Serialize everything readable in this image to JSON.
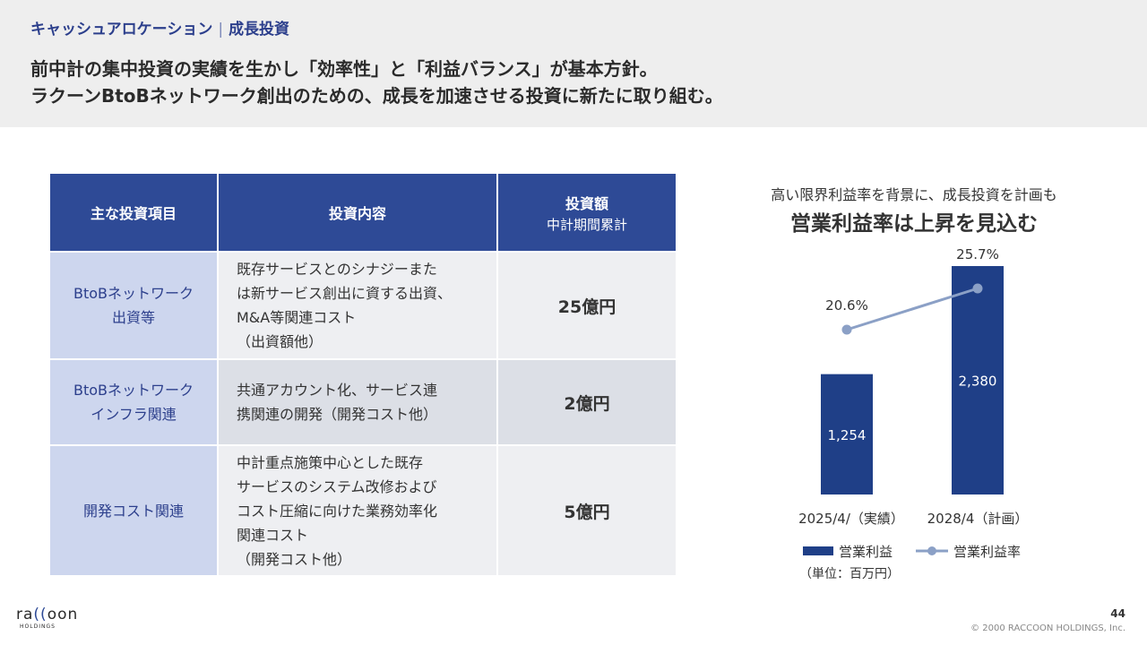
{
  "header": {
    "section": "キャッシュアロケーション",
    "separator": "|",
    "subsection": "成長投資",
    "headline_line1": "前中計の集中投資の実績を生かし「効率性」と「利益バランス」が基本方針。",
    "headline_line2": "ラクーンBtoBネットワーク創出のための、成長を加速させる投資に新たに取り組む。"
  },
  "table": {
    "col1": "主な投資項目",
    "col2": "投資内容",
    "col3_line1": "投資額",
    "col3_line2": "中計期間累計",
    "rows": [
      {
        "item": [
          "BtoBネットワーク",
          "出資等"
        ],
        "desc": [
          "既存サービスとのシナジーまた",
          "は新サービス創出に資する出資、",
          "M&A等関連コスト",
          "（出資額他）"
        ],
        "amount": "25億円"
      },
      {
        "item": [
          "BtoBネットワーク",
          "インフラ関連"
        ],
        "desc": [
          "共通アカウント化、サービス連",
          "携関連の開発（開発コスト他）"
        ],
        "amount": "2億円"
      },
      {
        "item": [
          "開発コスト関連"
        ],
        "desc": [
          "中計重点施策中心とした既存",
          "サービスのシステム改修および",
          "コスト圧縮に向けた業務効率化",
          "関連コスト",
          "（開発コスト他）"
        ],
        "amount": "5億円"
      }
    ]
  },
  "chart_heading": {
    "subtitle": "高い限界利益率を背景に、成長投資を計画も",
    "title": "営業利益率は上昇を見込む"
  },
  "chart_data": {
    "type": "bar",
    "categories": [
      "2025/4/（実績）",
      "2028/4（計画）"
    ],
    "series": [
      {
        "name": "営業利益",
        "type": "bar",
        "values": [
          1254,
          2380
        ],
        "labels": [
          "1,254",
          "2,380"
        ],
        "color": "#1f3f87"
      },
      {
        "name": "営業利益率",
        "type": "line",
        "values": [
          20.6,
          25.7
        ],
        "labels": [
          "20.6%",
          "25.7%"
        ],
        "color": "#8ba0c6"
      }
    ],
    "unit": "（単位：百万円）",
    "legend": "bottom"
  },
  "footer": {
    "logo_pre": "ra",
    "logo_cc": "((",
    "logo_post": "oon",
    "logo_sub": "HOLDINGS",
    "page": "44",
    "copyright": "© 2000 RACCOON HOLDINGS, Inc."
  }
}
